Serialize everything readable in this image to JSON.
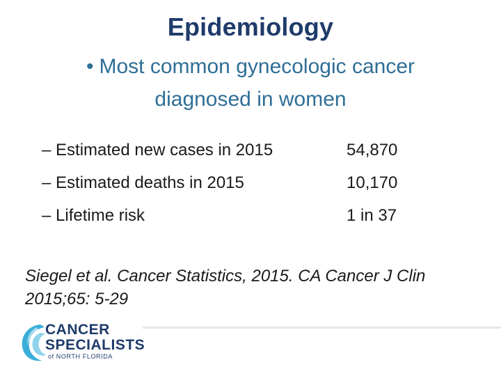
{
  "slide": {
    "title": "Epidemiology",
    "main_bullet": {
      "marker": "•",
      "line1": "Most common gynecologic cancer",
      "line2": "diagnosed in women"
    },
    "stats": [
      {
        "label": "– Estimated new cases in 2015",
        "value": "54,870"
      },
      {
        "label": "– Estimated deaths in 2015",
        "value": "10,170"
      },
      {
        "label": "– Lifetime risk",
        "value": "1 in 37"
      }
    ],
    "citation": {
      "line1": "Siegel et al. Cancer Statistics, 2015. CA Cancer J Clin",
      "line2": "2015;65: 5-29"
    }
  },
  "logo": {
    "word1": "CANCER",
    "word2": "SPECIALISTS",
    "sub": "of NORTH FLORIDA",
    "colors": {
      "navy": "#1f3b6b",
      "teal": "#3aaed8",
      "light_teal": "#8fd3ec"
    }
  },
  "colors": {
    "title": "#1f3b6b",
    "bullet": "#2f6e96",
    "body_text": "#1a1a1a",
    "divider": "#e6e6e6"
  }
}
